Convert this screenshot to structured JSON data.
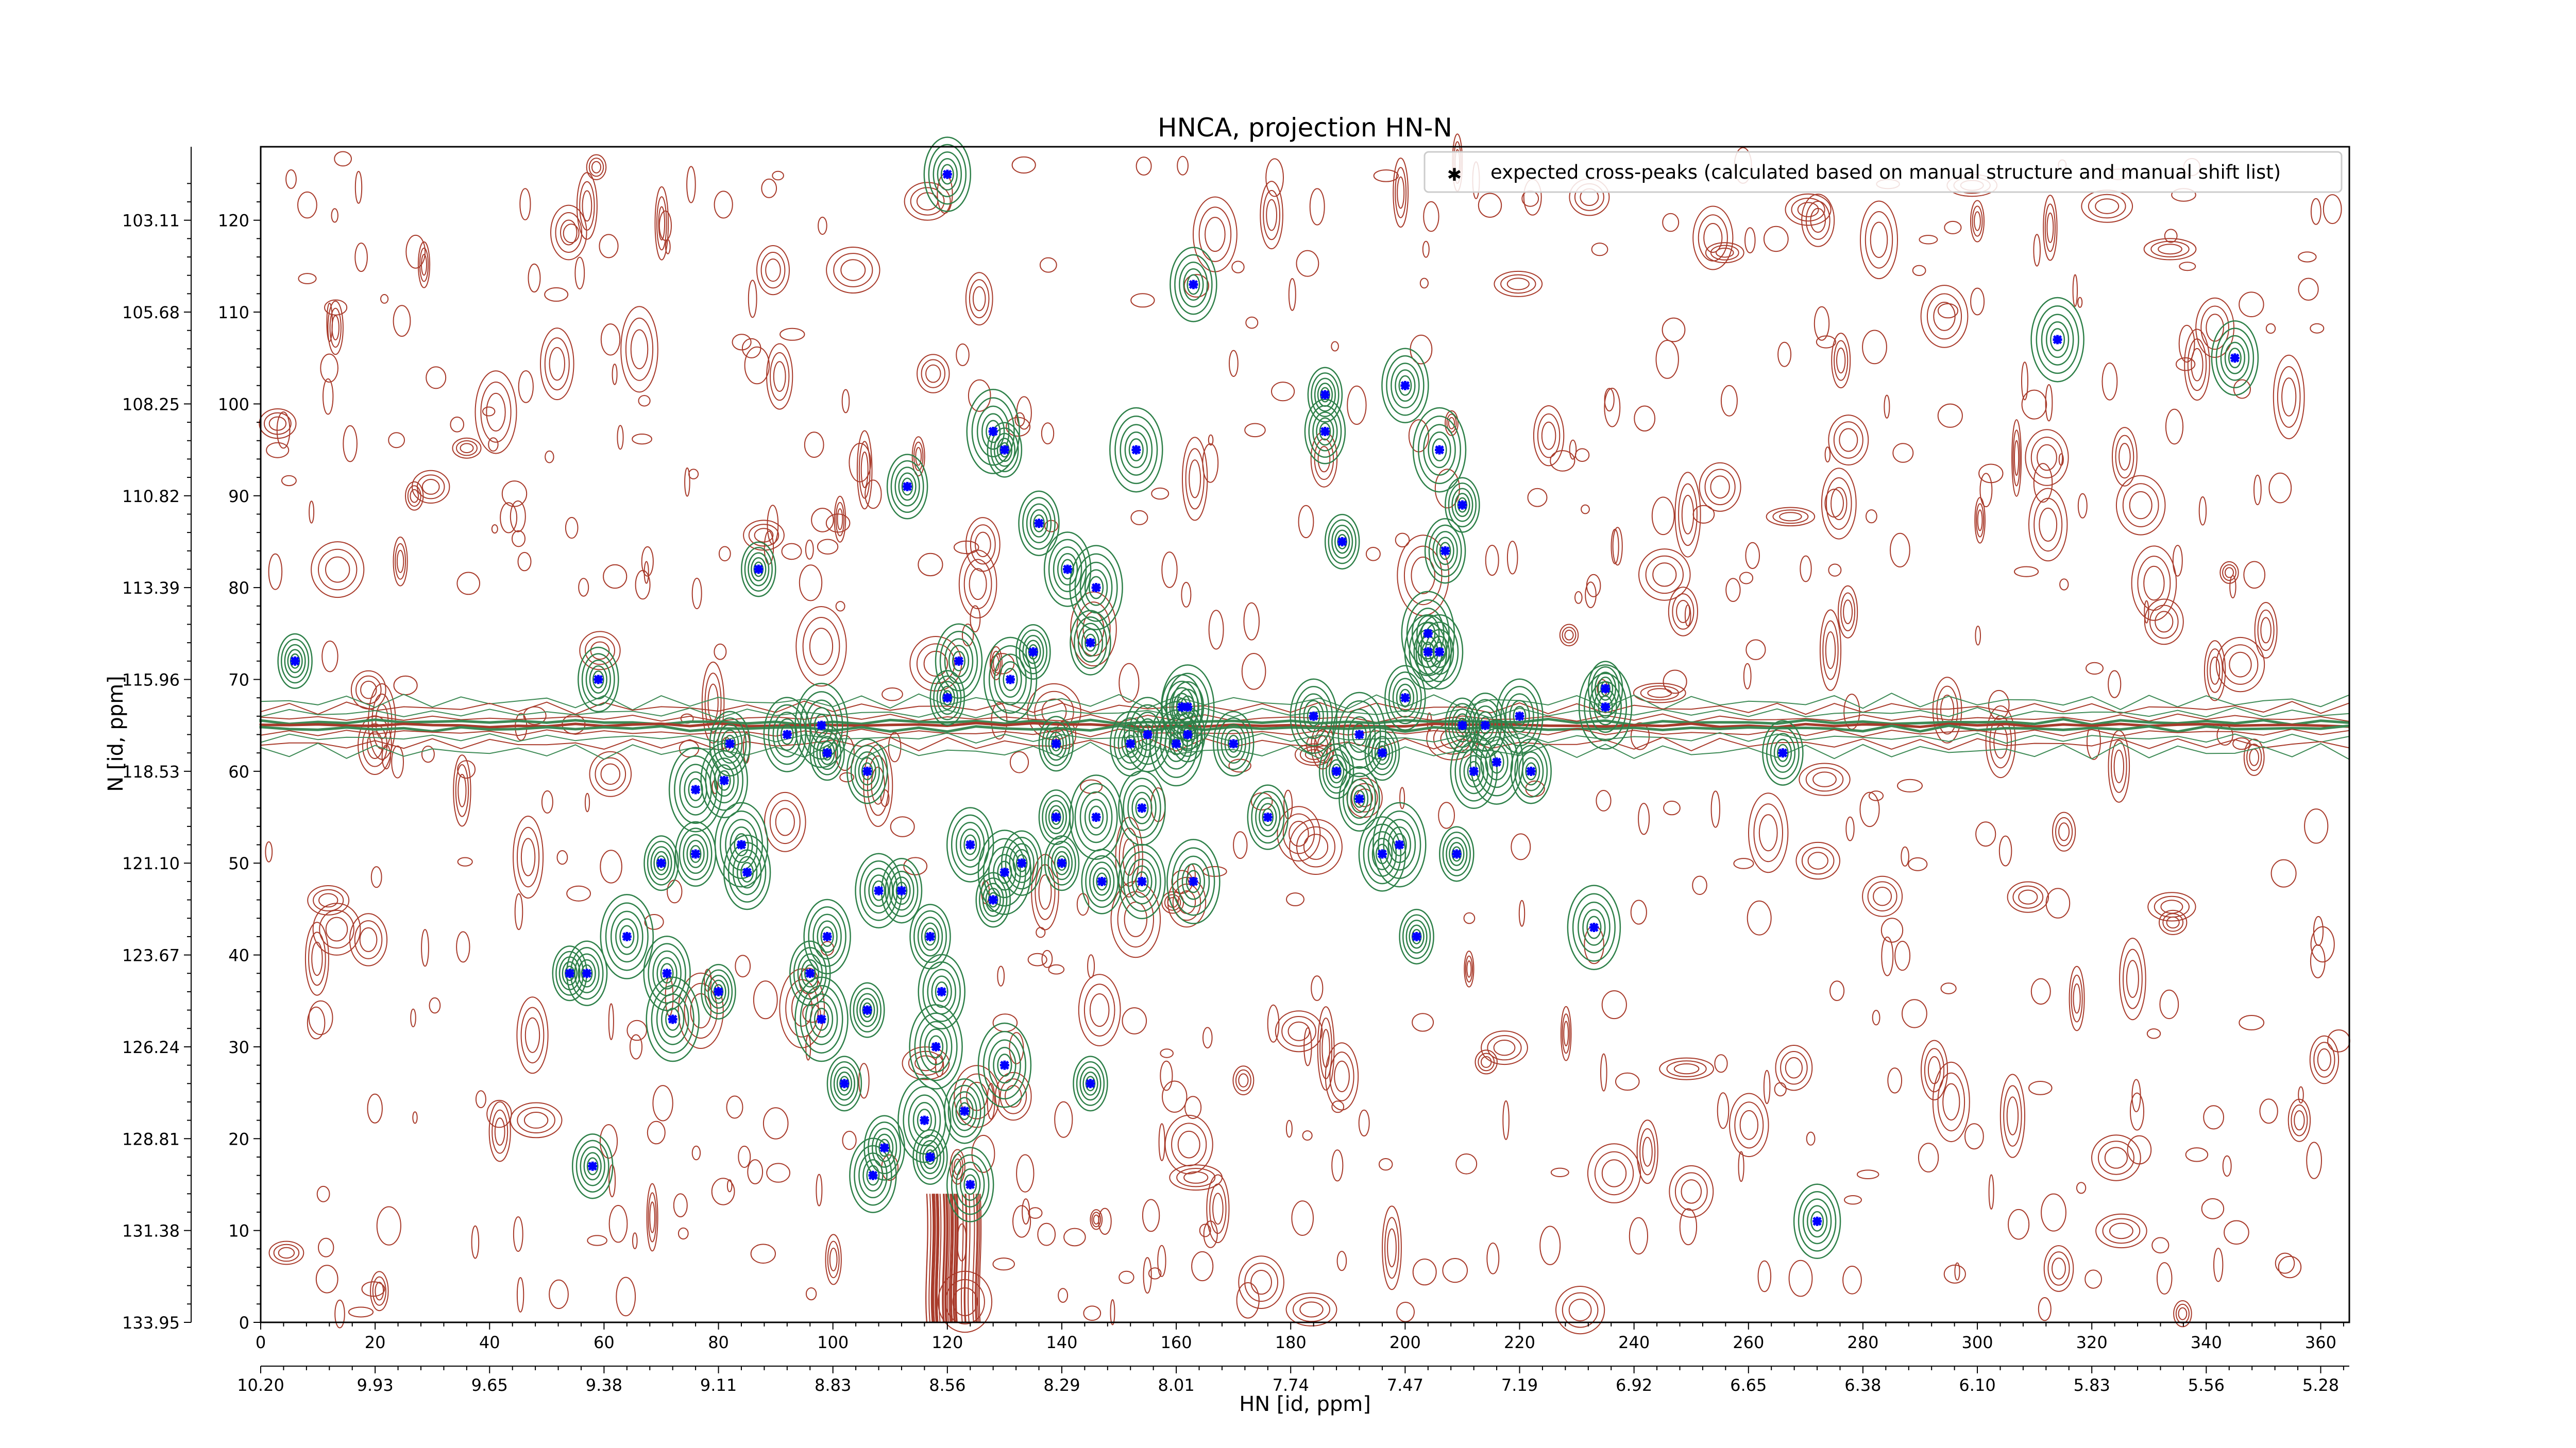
{
  "chart_data": {
    "type": "scatter",
    "title": "HNCA, projection HN-N",
    "xlabel": "HN [id, ppm]",
    "ylabel": "N [id, ppm]",
    "xlim": [
      0,
      365
    ],
    "ylim": [
      0,
      128
    ],
    "grid": false,
    "legend_position": "top-right",
    "x_ticks_index": [
      "0",
      "20",
      "40",
      "60",
      "80",
      "100",
      "120",
      "140",
      "160",
      "180",
      "200",
      "220",
      "240",
      "260",
      "280",
      "300",
      "320",
      "340",
      "360"
    ],
    "x_ticks_ppm": [
      "10.20",
      "9.93",
      "9.65",
      "9.38",
      "9.11",
      "8.83",
      "8.56",
      "8.29",
      "8.01",
      "7.74",
      "7.47",
      "7.19",
      "6.92",
      "6.65",
      "6.38",
      "6.10",
      "5.83",
      "5.56",
      "5.28"
    ],
    "y_ticks_index": [
      "0",
      "10",
      "20",
      "30",
      "40",
      "50",
      "60",
      "70",
      "80",
      "90",
      "100",
      "110",
      "120"
    ],
    "y_ticks_ppm": [
      "133.95",
      "131.38",
      "128.81",
      "126.24",
      "123.67",
      "121.10",
      "118.53",
      "115.96",
      "113.39",
      "110.82",
      "108.25",
      "105.68",
      "103.11"
    ],
    "series": [
      {
        "name": "expected cross-peaks (calculated based on manual structure and manual shift list)",
        "color": "#0000ff",
        "points": [
          [
            6,
            72
          ],
          [
            59,
            70
          ],
          [
            120,
            125
          ],
          [
            128,
            97
          ],
          [
            130,
            95
          ],
          [
            136,
            87
          ],
          [
            141,
            82
          ],
          [
            146,
            80
          ],
          [
            87,
            82
          ],
          [
            113,
            91
          ],
          [
            163,
            113
          ],
          [
            153,
            95
          ],
          [
            186,
            101
          ],
          [
            186,
            97
          ],
          [
            200,
            102
          ],
          [
            206,
            95
          ],
          [
            189,
            85
          ],
          [
            207,
            84
          ],
          [
            345,
            105
          ],
          [
            314,
            107
          ],
          [
            135,
            73
          ],
          [
            145,
            74
          ],
          [
            122,
            72
          ],
          [
            131,
            70
          ],
          [
            120,
            68
          ],
          [
            82,
            63
          ],
          [
            92,
            64
          ],
          [
            98,
            65
          ],
          [
            99,
            62
          ],
          [
            106,
            60
          ],
          [
            81,
            59
          ],
          [
            76,
            58
          ],
          [
            139,
            63
          ],
          [
            152,
            63
          ],
          [
            155,
            64
          ],
          [
            162,
            67
          ],
          [
            162,
            64
          ],
          [
            170,
            63
          ],
          [
            184,
            66
          ],
          [
            192,
            64
          ],
          [
            196,
            62
          ],
          [
            200,
            68
          ],
          [
            204,
            73
          ],
          [
            204,
            75
          ],
          [
            210,
            65
          ],
          [
            214,
            65
          ],
          [
            220,
            66
          ],
          [
            235,
            67
          ],
          [
            235,
            69
          ],
          [
            266,
            62
          ],
          [
            212,
            60
          ],
          [
            216,
            61
          ],
          [
            188,
            60
          ],
          [
            192,
            57
          ],
          [
            196,
            51
          ],
          [
            199,
            52
          ],
          [
            209,
            51
          ],
          [
            176,
            55
          ],
          [
            154,
            56
          ],
          [
            146,
            55
          ],
          [
            139,
            55
          ],
          [
            133,
            50
          ],
          [
            124,
            52
          ],
          [
            130,
            49
          ],
          [
            140,
            50
          ],
          [
            147,
            48
          ],
          [
            154,
            48
          ],
          [
            163,
            48
          ],
          [
            128,
            46
          ],
          [
            112,
            47
          ],
          [
            108,
            47
          ],
          [
            84,
            52
          ],
          [
            70,
            50
          ],
          [
            76,
            51
          ],
          [
            85,
            49
          ],
          [
            64,
            42
          ],
          [
            54,
            38
          ],
          [
            57,
            38
          ],
          [
            71,
            38
          ],
          [
            72,
            33
          ],
          [
            80,
            36
          ],
          [
            96,
            38
          ],
          [
            99,
            42
          ],
          [
            98,
            33
          ],
          [
            106,
            34
          ],
          [
            117,
            42
          ],
          [
            119,
            36
          ],
          [
            118,
            30
          ],
          [
            102,
            26
          ],
          [
            109,
            19
          ],
          [
            107,
            16
          ],
          [
            116,
            22
          ],
          [
            117,
            18
          ],
          [
            123,
            23
          ],
          [
            124,
            15
          ],
          [
            130,
            28
          ],
          [
            145,
            26
          ],
          [
            58,
            17
          ],
          [
            272,
            11
          ],
          [
            233,
            43
          ],
          [
            202,
            42
          ],
          [
            161,
            67
          ],
          [
            206,
            73
          ],
          [
            160,
            63
          ],
          [
            210,
            89
          ],
          [
            222,
            60
          ]
        ]
      }
    ]
  }
}
